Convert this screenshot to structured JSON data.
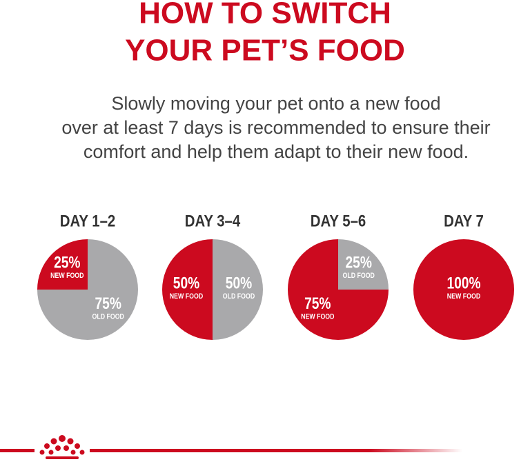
{
  "title_lines": [
    "HOW TO SWITCH",
    "YOUR PET’S FOOD"
  ],
  "description_lines": [
    "Slowly moving your pet onto a new food",
    "over at least 7 days is recommended to ensure their",
    "comfort and help them adapt to their new food."
  ],
  "chart_data": [
    {
      "type": "pie",
      "title": "DAY 1–2",
      "categories": [
        "NEW FOOD",
        "OLD FOOD"
      ],
      "values": [
        25,
        75
      ],
      "value_labels": [
        "25%",
        "75%"
      ],
      "colors": [
        "#cc0a1f",
        "#a9a9ab"
      ]
    },
    {
      "type": "pie",
      "title": "DAY 3–4",
      "categories": [
        "NEW FOOD",
        "OLD FOOD"
      ],
      "values": [
        50,
        50
      ],
      "value_labels": [
        "50%",
        "50%"
      ],
      "colors": [
        "#cc0a1f",
        "#a9a9ab"
      ]
    },
    {
      "type": "pie",
      "title": "DAY 5–6",
      "categories": [
        "NEW FOOD",
        "OLD FOOD"
      ],
      "values": [
        75,
        25
      ],
      "value_labels": [
        "75%",
        "25%"
      ],
      "colors": [
        "#cc0a1f",
        "#a9a9ab"
      ]
    },
    {
      "type": "pie",
      "title": "DAY 7",
      "categories": [
        "NEW FOOD"
      ],
      "values": [
        100
      ],
      "value_labels": [
        "100%"
      ],
      "colors": [
        "#cc0a1f"
      ]
    }
  ]
}
